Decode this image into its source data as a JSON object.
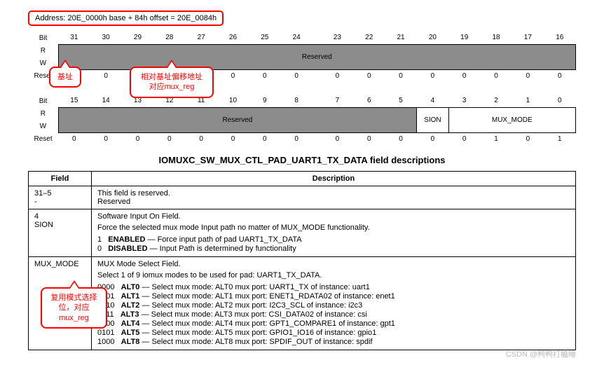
{
  "address_line": "Address: 20E_0000h base + 84h offset = 20E_0084h",
  "bit_row_hi": [
    "31",
    "30",
    "29",
    "28",
    "27",
    "26",
    "25",
    "24",
    "",
    "23",
    "22",
    "21",
    "20",
    "19",
    "18",
    "17",
    "16"
  ],
  "bit_row_lo": [
    "15",
    "14",
    "13",
    "12",
    "11",
    "10",
    "9",
    "8",
    "",
    "7",
    "6",
    "5",
    "4",
    "3",
    "2",
    "1",
    "0"
  ],
  "labels": {
    "bit": "Bit",
    "r": "R",
    "w": "W",
    "reset": "Reset",
    "reserved": "Reserved",
    "sion": "SION",
    "mux": "MUX_MODE"
  },
  "reset_hi": [
    "0",
    "0",
    "0",
    "0",
    "0",
    "0",
    "0",
    "0",
    "",
    "0",
    "0",
    "0",
    "0",
    "0",
    "0",
    "0",
    "0"
  ],
  "reset_lo": [
    "0",
    "0",
    "0",
    "0",
    "0",
    "0",
    "0",
    "0",
    "",
    "0",
    "0",
    "0",
    "0",
    "0",
    "1",
    "0",
    "1"
  ],
  "section_title": "IOMUXC_SW_MUX_CTL_PAD_UART1_TX_DATA field descriptions",
  "th": {
    "field": "Field",
    "desc": "Description"
  },
  "row1": {
    "field1": "31–5",
    "field2": "-",
    "d1": "This field is reserved.",
    "d2": "Reserved"
  },
  "row2": {
    "field1": "4",
    "field2": "SION",
    "d1": "Software Input On Field.",
    "d2": "Force the selected mux mode Input path no matter of MUX_MODE functionality.",
    "e1a": "1",
    "e1b": "ENABLED",
    "e1c": " — Force input path of pad UART1_TX_DATA",
    "e2a": "0",
    "e2b": "DISABLED",
    "e2c": " — Input Path is determined by functionality"
  },
  "row3": {
    "field": "MUX_MODE",
    "d1": "MUX Mode Select Field.",
    "d2": "Select 1 of 9 iomux modes to be used for pad: UART1_TX_DATA.",
    "alts": [
      {
        "c": "0000",
        "n": "ALT0",
        "t": " — Select mux mode: ALT0 mux port: UART1_TX of instance: uart1"
      },
      {
        "c": "0001",
        "n": "ALT1",
        "t": " — Select mux mode: ALT1 mux port: ENET1_RDATA02 of instance: enet1"
      },
      {
        "c": "0010",
        "n": "ALT2",
        "t": " — Select mux mode: ALT2 mux port: I2C3_SCL of instance: i2c3"
      },
      {
        "c": "0011",
        "n": "ALT3",
        "t": " — Select mux mode: ALT3 mux port: CSI_DATA02 of instance: csi"
      },
      {
        "c": "0100",
        "n": "ALT4",
        "t": " — Select mux mode: ALT4 mux port: GPT1_COMPARE1 of instance: gpt1"
      },
      {
        "c": "0101",
        "n": "ALT5",
        "t": " — Select mux mode: ALT5 mux port: GPIO1_IO16 of instance: gpio1"
      },
      {
        "c": "1000",
        "n": "ALT8",
        "t": " — Select mux mode: ALT8 mux port: SPDIF_OUT of instance: spdif"
      }
    ]
  },
  "callouts": {
    "c1": "基址",
    "c2a": "相对基址偏移地址",
    "c2b": "对应mux_reg",
    "c3a": "复用模式选择",
    "c3b": "位，对应",
    "c3c": "mux_reg"
  },
  "watermark": "CSDN @鸭鸭打瞌睡"
}
